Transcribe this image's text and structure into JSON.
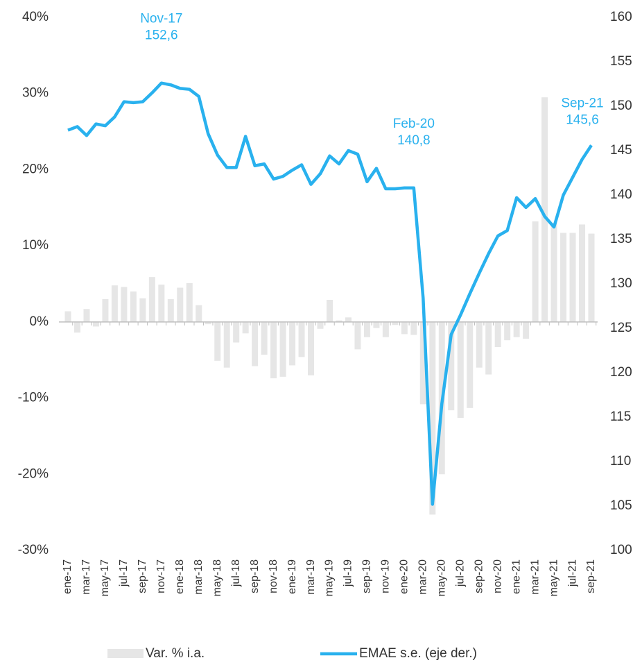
{
  "chart_data": {
    "type": "bar_line",
    "categories": [
      "ene-17",
      null,
      "mar-17",
      null,
      "may-17",
      null,
      "jul-17",
      null,
      "sep-17",
      null,
      "nov-17",
      null,
      "ene-18",
      null,
      "mar-18",
      null,
      "may-18",
      null,
      "jul-18",
      null,
      "sep-18",
      null,
      "nov-18",
      null,
      "ene-19",
      null,
      "mar-19",
      null,
      "may-19",
      null,
      "jul-19",
      null,
      "sep-19",
      null,
      "nov-19",
      null,
      "ene-20",
      null,
      "mar-20",
      null,
      "may-20",
      null,
      "jul-20",
      null,
      "sep-20",
      null,
      "nov-20",
      null,
      "ene-21",
      null,
      "mar-21",
      null,
      "may-21",
      null,
      "jul-21",
      null,
      "sep-21"
    ],
    "series": [
      {
        "name": "Var. % i.a.",
        "type": "bar",
        "color": "#e6e6e6",
        "axis": "y",
        "values": [
          1.4,
          -1.4,
          1.7,
          -0.6,
          3.0,
          4.8,
          4.6,
          4.0,
          3.1,
          5.9,
          4.9,
          3.0,
          4.5,
          5.1,
          2.2,
          -0.3,
          -5.1,
          -6.0,
          -2.7,
          -1.5,
          -5.8,
          -4.3,
          -7.4,
          -7.2,
          -5.7,
          -4.6,
          -7.0,
          -0.9,
          2.9,
          0.2,
          0.6,
          -3.6,
          -2.0,
          -0.8,
          -2.0,
          -0.4,
          -1.6,
          -1.7,
          -10.8,
          -25.3,
          -20.0,
          -11.6,
          -12.6,
          -11.3,
          -6.0,
          -6.9,
          -3.3,
          -2.4,
          -2.0,
          -2.2,
          13.2,
          29.5,
          13.0,
          11.7,
          11.7,
          12.8,
          11.6
        ]
      },
      {
        "name": "EMAE s.e. (eje der.)",
        "type": "line",
        "color": "#29b1ee",
        "axis": "y2",
        "values": [
          147.3,
          147.7,
          146.7,
          148.0,
          147.8,
          148.8,
          150.5,
          150.4,
          150.5,
          151.5,
          152.6,
          152.4,
          152.0,
          151.9,
          151.1,
          146.9,
          144.5,
          143.1,
          143.1,
          146.6,
          143.3,
          143.5,
          141.8,
          142.1,
          142.8,
          143.4,
          141.2,
          142.4,
          144.4,
          143.5,
          145.0,
          144.6,
          141.5,
          143.0,
          140.7,
          140.7,
          140.8,
          140.8,
          128.4,
          105.2,
          116.5,
          124.3,
          126.5,
          128.9,
          131.2,
          133.4,
          135.4,
          136.0,
          139.7,
          138.6,
          139.6,
          137.6,
          136.4,
          140.0,
          142.0,
          144.0,
          145.6
        ]
      }
    ],
    "ylim": [
      -30,
      40
    ],
    "yticks": [
      {
        "value": -30,
        "label": "-30%"
      },
      {
        "value": -20,
        "label": "-20%"
      },
      {
        "value": -10,
        "label": "-10%"
      },
      {
        "value": 0,
        "label": "0%"
      },
      {
        "value": 10,
        "label": "10%"
      },
      {
        "value": 20,
        "label": "20%"
      },
      {
        "value": 30,
        "label": "30%"
      },
      {
        "value": 40,
        "label": "40%"
      }
    ],
    "y2lim": [
      100,
      160
    ],
    "y2ticks": [
      100,
      105,
      110,
      115,
      120,
      125,
      130,
      135,
      140,
      145,
      150,
      155,
      160
    ],
    "annotations": [
      [
        "Nov-17",
        "152,6"
      ],
      [
        "Feb-20",
        "140,8"
      ],
      [
        "Sep-21",
        "145,6"
      ]
    ],
    "legend": "bottom"
  }
}
